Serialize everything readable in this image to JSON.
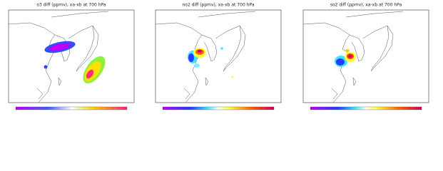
{
  "panels": [
    {
      "title": "o3 diff (ppmv), xa-xb at 700 hPa"
    },
    {
      "title": "no2 diff (ppmv), xa-xb at 700 hPa"
    },
    {
      "title": "so2 diff (ppmv), xa-xb at 700 hPa"
    }
  ]
}
